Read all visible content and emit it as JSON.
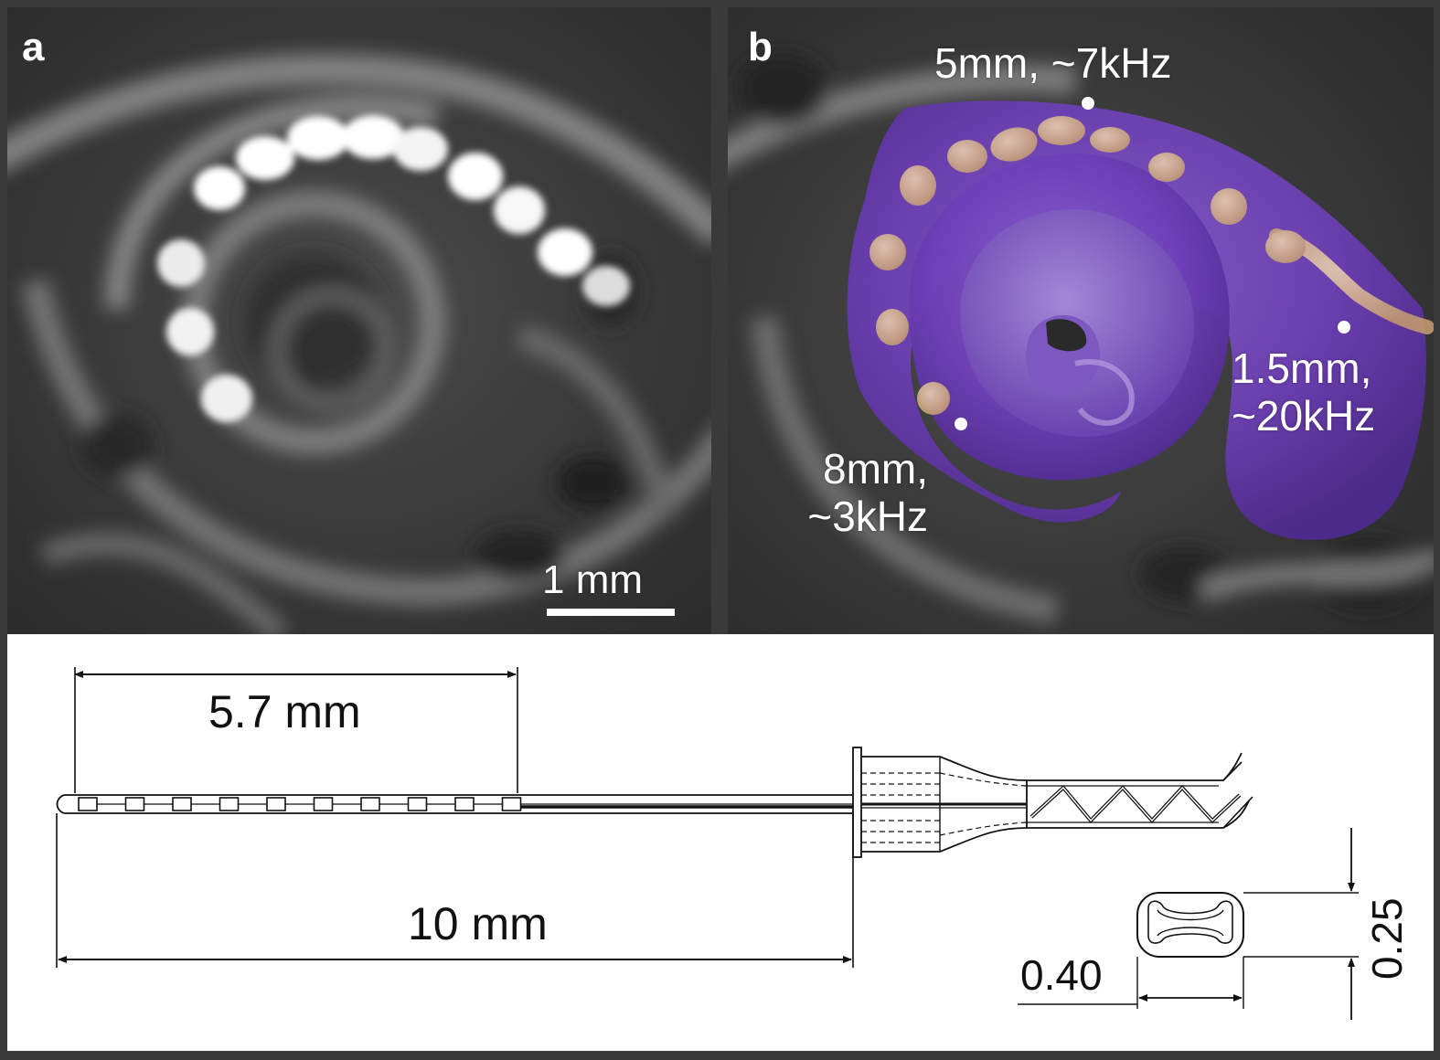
{
  "panels": {
    "a": {
      "letter": "a",
      "scale_bar_label": "1 mm"
    },
    "b": {
      "letter": "b",
      "annotations": [
        {
          "id": "5mm",
          "lines": [
            "5mm, ~7kHz"
          ]
        },
        {
          "id": "1_5mm",
          "lines": [
            "1.5mm,",
            "~20kHz"
          ]
        },
        {
          "id": "8mm",
          "lines": [
            "8mm,",
            "~3kHz"
          ]
        }
      ]
    },
    "c": {
      "dimensions": {
        "contact_span": "5.7 mm",
        "shank_length": "10 mm",
        "width": "0.40",
        "height": "0.25"
      },
      "contact_count": 10
    }
  },
  "colors": {
    "cochlea_purple": "#6e3fb8",
    "electrode_tan": "#d7b48d",
    "line_drawing": "#111111"
  }
}
